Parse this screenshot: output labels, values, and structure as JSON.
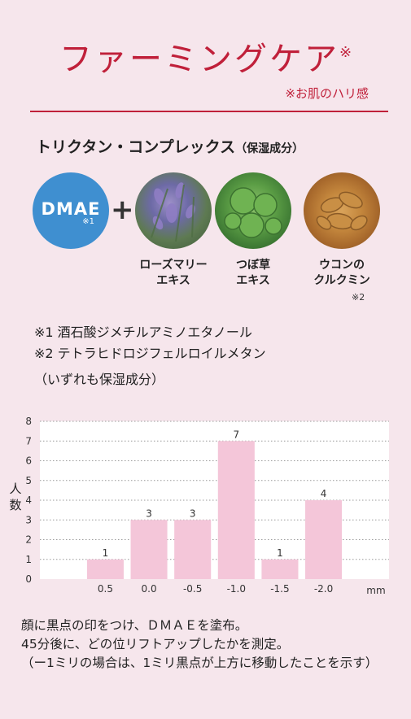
{
  "header": {
    "title": "ファーミングケア",
    "title_mark": "※",
    "title_note": "※お肌のハリ感"
  },
  "complex": {
    "name": "トリクタン・コンプレックス",
    "suffix": "（保湿成分）"
  },
  "ingredients": {
    "dmae": {
      "label": "DMAE",
      "mark": "※1"
    },
    "plus": "+",
    "items": [
      {
        "line1": "ローズマリー",
        "line2": "エキス"
      },
      {
        "line1": "つぼ草",
        "line2": "エキス"
      },
      {
        "line1": "ウコンの",
        "line2": "クルクミン"
      }
    ],
    "turmeric_mark": "※2"
  },
  "notes": {
    "n1": "※1  酒石酸ジメチルアミノエタノール",
    "n2": "※2  テトラヒドロジフェルロイルメタン",
    "n3": "（いずれも保湿成分）"
  },
  "colors": {
    "accent": "#c0203a",
    "dmae_blue": "#3f8fd0",
    "bar_fill": "#f4c6d9",
    "background": "#f6e6ec"
  },
  "chart_data": {
    "type": "bar",
    "categories": [
      "",
      "0.5",
      "0.0",
      "-0.5",
      "-1.0",
      "-1.5",
      "-2.0",
      ""
    ],
    "values": [
      0,
      1,
      3,
      3,
      7,
      1,
      4,
      0
    ],
    "data_labels": [
      "",
      "1",
      "3",
      "3",
      "7",
      "1",
      "4",
      ""
    ],
    "ylabel": "人数",
    "xunit": "mm",
    "ylim": [
      0,
      8
    ],
    "yticks": [
      "0",
      "1",
      "2",
      "3",
      "4",
      "5",
      "6",
      "7",
      "8"
    ],
    "grid": "dotted horizontal"
  },
  "caption": {
    "line1": "顔に黒点の印をつけ、ＤＭＡＥを塗布。",
    "line2": "45分後に、どの位リフトアップしたかを測定。",
    "line3": "（ー1ミリの場合は、1ミリ黒点が上方に移動したことを示す）"
  }
}
